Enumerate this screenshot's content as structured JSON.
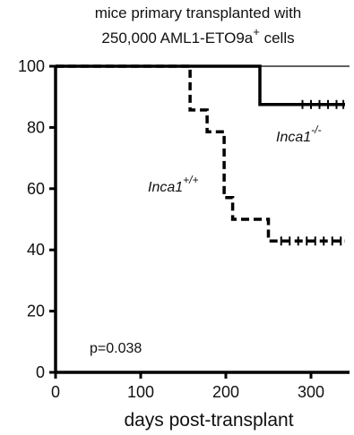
{
  "chart_data": {
    "type": "line",
    "subtype": "kaplan-meier survival",
    "title_lines": [
      "mice primary transplanted with",
      "250,000 AML1-ETO9a",
      "+",
      " cells"
    ],
    "xlabel": "days post-transplant",
    "ylabel": "",
    "xlim": [
      0,
      340
    ],
    "ylim": [
      0,
      100
    ],
    "x_ticks": [
      0,
      100,
      200,
      300
    ],
    "y_ticks": [
      0,
      20,
      40,
      60,
      80,
      100
    ],
    "grid": false,
    "annotation": "p=0.038",
    "series": [
      {
        "label_base": "Inca1",
        "label_sup": "-/-",
        "style": "solid",
        "color": "#000000",
        "steps": [
          [
            0,
            100
          ],
          [
            240,
            100
          ],
          [
            240,
            87.5
          ],
          [
            340,
            87.5
          ]
        ],
        "censor_x": [
          290,
          300,
          310,
          320,
          330,
          338
        ]
      },
      {
        "label_base": "Inca1",
        "label_sup": "+/+",
        "style": "dashed",
        "color": "#000000",
        "steps": [
          [
            0,
            100
          ],
          [
            158,
            100
          ],
          [
            158,
            85.7
          ],
          [
            178,
            85.7
          ],
          [
            178,
            78.6
          ],
          [
            198,
            78.6
          ],
          [
            198,
            57.1
          ],
          [
            208,
            57.1
          ],
          [
            208,
            50
          ],
          [
            250,
            50
          ],
          [
            250,
            42.9
          ],
          [
            340,
            42.9
          ]
        ],
        "censor_x": [
          265,
          275,
          285,
          295,
          305,
          315,
          325,
          335
        ]
      }
    ]
  }
}
